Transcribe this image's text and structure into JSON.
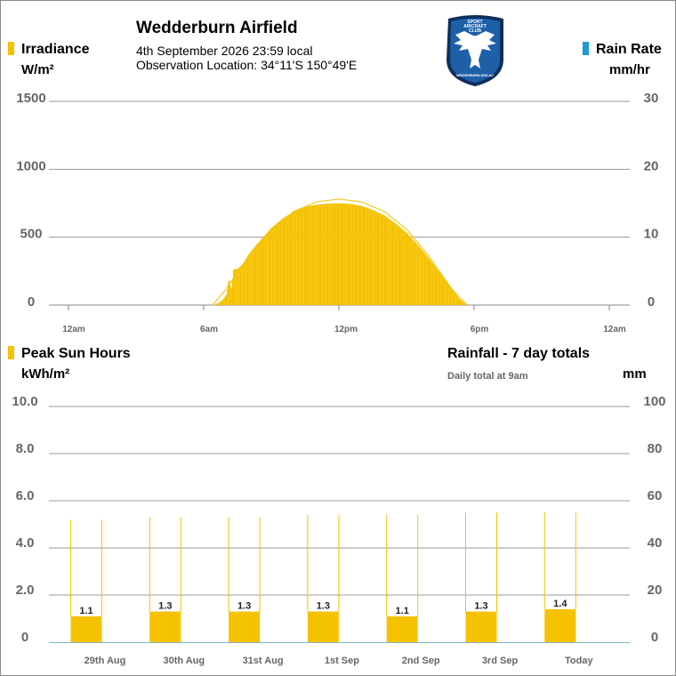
{
  "header": {
    "title": "Wedderburn Airfield",
    "datetime": "4th September 2026  23:59 local",
    "location": "Observation Location: 34°11'S 150°49'E",
    "logo": {
      "shape": "shield-eagle-logo",
      "text_top": [
        "SPORT",
        "AIRCRAFT",
        "CLUB"
      ],
      "text_bottom": "WEDDERBURN.ORG.AU",
      "color": "#1e5fa8"
    }
  },
  "colors": {
    "irradiance": "#f5c200",
    "rain": "#1a9ad6",
    "grid": "#9a9a9a",
    "axis_text": "#666666"
  },
  "top_panel": {
    "left_series": "Irradiance",
    "left_unit": "W/m²",
    "right_series": "Rain Rate",
    "right_unit": "mm/hr"
  },
  "bottom_panel": {
    "left_series": "Peak Sun Hours",
    "left_unit": "kWh/m²",
    "right_title": "Rainfall - 7 day totals",
    "right_note": "Daily total at 9am",
    "right_unit": "mm"
  },
  "chart_data": [
    {
      "type": "bar",
      "y_left": {
        "ticks": [
          "1500",
          "1000",
          "500",
          "0"
        ],
        "ylim": [
          0,
          1500
        ]
      },
      "y_right": {
        "ticks": [
          "30",
          "20",
          "10",
          "0"
        ],
        "ylim": [
          0,
          30
        ]
      },
      "x_ticks": [
        "12am",
        "6am",
        "12pm",
        "6pm",
        "12am"
      ],
      "x_range_hours": [
        0,
        24
      ],
      "series": [
        {
          "name": "Irradiance",
          "values": [
            {
              "h": 6.4,
              "v": 2
            },
            {
              "h": 6.6,
              "v": 12
            },
            {
              "h": 6.8,
              "v": 35
            },
            {
              "h": 7.0,
              "v": 80
            },
            {
              "h": 7.1,
              "v": 200
            },
            {
              "h": 7.2,
              "v": 110
            },
            {
              "h": 7.3,
              "v": 260
            },
            {
              "h": 7.5,
              "v": 270
            },
            {
              "h": 7.7,
              "v": 300
            },
            {
              "h": 8.0,
              "v": 380
            },
            {
              "h": 8.5,
              "v": 480
            },
            {
              "h": 9.0,
              "v": 570
            },
            {
              "h": 9.5,
              "v": 640
            },
            {
              "h": 10.0,
              "v": 690
            },
            {
              "h": 10.5,
              "v": 725
            },
            {
              "h": 11.0,
              "v": 740
            },
            {
              "h": 11.5,
              "v": 748
            },
            {
              "h": 12.0,
              "v": 750
            },
            {
              "h": 12.5,
              "v": 745
            },
            {
              "h": 13.0,
              "v": 730
            },
            {
              "h": 13.5,
              "v": 700
            },
            {
              "h": 14.0,
              "v": 660
            },
            {
              "h": 14.5,
              "v": 600
            },
            {
              "h": 15.0,
              "v": 530
            },
            {
              "h": 15.5,
              "v": 440
            },
            {
              "h": 16.0,
              "v": 340
            },
            {
              "h": 16.5,
              "v": 230
            },
            {
              "h": 17.0,
              "v": 120
            },
            {
              "h": 17.3,
              "v": 50
            },
            {
              "h": 17.6,
              "v": 5
            }
          ]
        },
        {
          "name": "Clear sky",
          "values": [
            {
              "h": 6.4,
              "v": 0
            },
            {
              "h": 7.0,
              "v": 120
            },
            {
              "h": 8.0,
              "v": 360
            },
            {
              "h": 9.0,
              "v": 560
            },
            {
              "h": 10.0,
              "v": 690
            },
            {
              "h": 11.0,
              "v": 760
            },
            {
              "h": 12.0,
              "v": 780
            },
            {
              "h": 13.0,
              "v": 760
            },
            {
              "h": 14.0,
              "v": 690
            },
            {
              "h": 15.0,
              "v": 560
            },
            {
              "h": 16.0,
              "v": 360
            },
            {
              "h": 17.0,
              "v": 120
            },
            {
              "h": 17.7,
              "v": 0
            }
          ]
        }
      ]
    },
    {
      "type": "bar",
      "y_left": {
        "ticks": [
          "10.0",
          "8.0",
          "6.0",
          "4.0",
          "2.0",
          "0"
        ],
        "ylim": [
          0,
          10
        ]
      },
      "y_right": {
        "ticks": [
          "100",
          "80",
          "60",
          "40",
          "20",
          "0"
        ],
        "ylim": [
          0,
          100
        ]
      },
      "categories": [
        "29th Aug",
        "30th Aug",
        "31st Aug",
        "1st Sep",
        "2nd Sep",
        "3rd Sep",
        "Today"
      ],
      "series": [
        {
          "name": "Peak Sun Hours",
          "values": [
            1.1,
            1.3,
            1.3,
            1.3,
            1.1,
            1.3,
            1.4
          ],
          "labels": [
            "1.1",
            "1.3",
            "1.3",
            "1.3",
            "1.1",
            "1.3",
            "1.4"
          ],
          "markers": [
            5.2,
            5.3,
            5.3,
            5.4,
            5.4,
            5.5,
            5.5
          ]
        },
        {
          "name": "Rainfall",
          "values": [
            0,
            0,
            0,
            0,
            0,
            0,
            0
          ]
        }
      ]
    }
  ]
}
